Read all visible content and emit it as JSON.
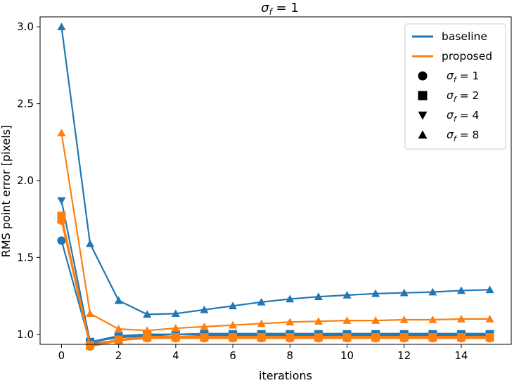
{
  "chart_data": {
    "type": "line",
    "title": "σ_f = 1",
    "title_main": "σ",
    "title_sub": "f",
    "title_rest": " = 1",
    "xlabel": "iterations",
    "ylabel": "RMS point error [pixels]",
    "xlim": [
      -0.75,
      15.75
    ],
    "ylim": [
      0.935,
      3.065
    ],
    "x": [
      0,
      1,
      2,
      3,
      4,
      5,
      6,
      7,
      8,
      9,
      10,
      11,
      12,
      13,
      14,
      15
    ],
    "xticks": [
      0,
      2,
      4,
      6,
      8,
      10,
      12,
      14
    ],
    "xtick_labels": [
      "0",
      "2",
      "4",
      "6",
      "8",
      "10",
      "12",
      "14"
    ],
    "yticks": [
      1.0,
      1.5,
      2.0,
      2.5,
      3.0
    ],
    "ytick_labels": [
      "1.0",
      "1.5",
      "2.0",
      "2.5",
      "3.0"
    ],
    "colors": {
      "baseline": "#1f77b4",
      "proposed": "#ff7f0e"
    },
    "legend": {
      "position": "top-right",
      "line_entries": [
        {
          "label": "baseline",
          "color": "#1f77b4"
        },
        {
          "label": "proposed",
          "color": "#ff7f0e"
        }
      ],
      "marker_entries": [
        {
          "marker": "circle",
          "sym": "σ",
          "sub": "f",
          "rest": " = 1"
        },
        {
          "marker": "square",
          "sym": "σ",
          "sub": "f",
          "rest": " = 2"
        },
        {
          "marker": "triangle-down",
          "sym": "σ",
          "sub": "f",
          "rest": " = 4"
        },
        {
          "marker": "triangle-up",
          "sym": "σ",
          "sub": "f",
          "rest": " = 8"
        }
      ]
    },
    "series": [
      {
        "name": "baseline σf=1",
        "method": "baseline",
        "marker": "circle",
        "values": [
          1.61,
          0.94,
          0.96,
          0.98,
          0.985,
          0.99,
          0.99,
          0.99,
          0.99,
          0.99,
          0.99,
          0.99,
          0.99,
          0.99,
          0.99,
          0.99
        ]
      },
      {
        "name": "baseline σf=2",
        "method": "baseline",
        "marker": "square",
        "values": [
          1.75,
          0.95,
          0.98,
          0.99,
          1.0,
          1.0,
          1.0,
          1.0,
          1.0,
          1.0,
          1.0,
          1.0,
          1.0,
          1.0,
          1.0,
          1.0
        ]
      },
      {
        "name": "baseline σf=4",
        "method": "baseline",
        "marker": "triangle-down",
        "values": [
          1.87,
          0.95,
          0.99,
          1.0,
          1.0,
          1.005,
          1.005,
          1.005,
          1.005,
          1.005,
          1.005,
          1.005,
          1.005,
          1.005,
          1.005,
          1.005
        ]
      },
      {
        "name": "baseline σf=8",
        "method": "baseline",
        "marker": "triangle-up",
        "values": [
          3.0,
          1.59,
          1.22,
          1.13,
          1.135,
          1.16,
          1.185,
          1.21,
          1.23,
          1.245,
          1.255,
          1.265,
          1.27,
          1.275,
          1.285,
          1.29
        ]
      },
      {
        "name": "proposed σf=1",
        "method": "proposed",
        "marker": "circle",
        "values": [
          1.74,
          0.92,
          0.96,
          0.975,
          0.975,
          0.975,
          0.975,
          0.975,
          0.975,
          0.975,
          0.975,
          0.975,
          0.975,
          0.975,
          0.975,
          0.975
        ]
      },
      {
        "name": "proposed σf=2",
        "method": "proposed",
        "marker": "square",
        "values": [
          1.77,
          0.93,
          0.965,
          0.98,
          0.98,
          0.98,
          0.98,
          0.98,
          0.98,
          0.98,
          0.98,
          0.98,
          0.98,
          0.98,
          0.98,
          0.98
        ]
      },
      {
        "name": "proposed σf=4",
        "method": "proposed",
        "marker": "triangle-down",
        "values": [
          1.77,
          0.93,
          0.965,
          0.985,
          0.985,
          0.985,
          0.985,
          0.985,
          0.985,
          0.985,
          0.985,
          0.985,
          0.985,
          0.985,
          0.985,
          0.985
        ]
      },
      {
        "name": "proposed σf=8",
        "method": "proposed",
        "marker": "triangle-up",
        "values": [
          2.31,
          1.135,
          1.035,
          1.025,
          1.04,
          1.05,
          1.06,
          1.07,
          1.08,
          1.085,
          1.09,
          1.09,
          1.095,
          1.095,
          1.1,
          1.1
        ]
      }
    ]
  }
}
